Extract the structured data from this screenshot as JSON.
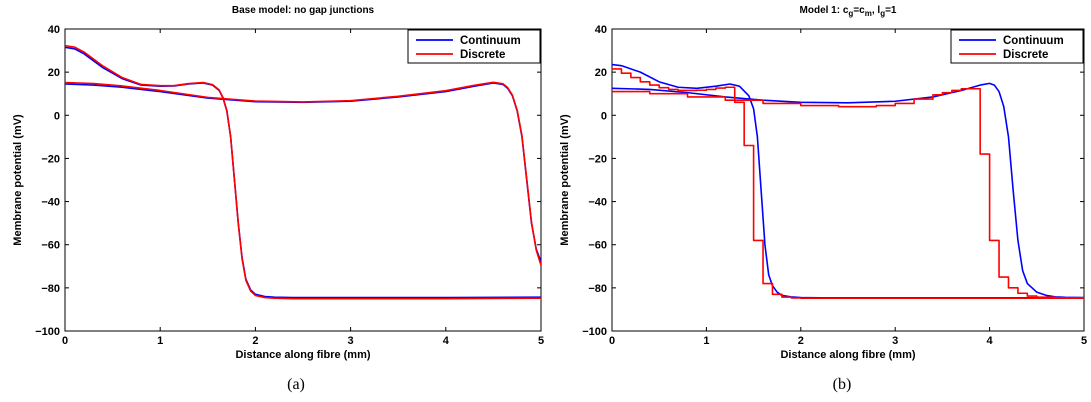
{
  "chart_data": [
    {
      "type": "line",
      "title": "Base model: no gap junctions",
      "title_sub": "",
      "caption": "(a)",
      "xlabel": "Distance along fibre (mm)",
      "ylabel": "Membrane potential (mV)",
      "xlim": [
        0,
        5
      ],
      "ylim": [
        -100,
        40
      ],
      "xticks": [
        "0",
        "1",
        "2",
        "3",
        "4",
        "5"
      ],
      "yticks": [
        "40",
        "20",
        "0",
        "−20",
        "−40",
        "−60",
        "−80",
        "−100"
      ],
      "legend_position": "top-right",
      "series": [
        {
          "name": "Continuum",
          "color": "#0000ff",
          "stepped": false,
          "curves": [
            {
              "x": [
                0,
                0.1,
                0.2,
                0.4,
                0.6,
                0.8,
                1.0,
                1.15,
                1.3,
                1.45,
                1.55,
                1.62,
                1.66,
                1.7,
                1.74,
                1.78,
                1.82,
                1.86,
                1.9,
                1.95,
                2.0,
                2.1,
                2.2,
                2.4,
                3.0,
                4.0,
                5.0
              ],
              "y": [
                31.5,
                30.8,
                28.5,
                22,
                17,
                14,
                13.5,
                13.6,
                14.5,
                15,
                14,
                11.5,
                8,
                2,
                -10,
                -30,
                -50,
                -66,
                -76,
                -81,
                -83,
                -84,
                -84.3,
                -84.5,
                -84.5,
                -84.5,
                -84.3
              ]
            },
            {
              "x": [
                0,
                0.3,
                0.6,
                1.0,
                1.5,
                2.0,
                2.5,
                3.0,
                3.5,
                4.0,
                4.3,
                4.5,
                4.6,
                4.65,
                4.7,
                4.75,
                4.8,
                4.85,
                4.9,
                4.95,
                5.0
              ],
              "y": [
                14.5,
                14,
                13,
                11,
                8,
                6.3,
                6,
                6.5,
                8.5,
                11,
                13.5,
                15,
                14.3,
                12.5,
                9,
                2,
                -10,
                -30,
                -50,
                -62,
                -68
              ]
            }
          ]
        },
        {
          "name": "Discrete",
          "color": "#ff0000",
          "stepped": false,
          "curves": [
            {
              "x": [
                0,
                0.1,
                0.2,
                0.4,
                0.6,
                0.8,
                1.0,
                1.15,
                1.3,
                1.45,
                1.55,
                1.62,
                1.66,
                1.7,
                1.74,
                1.78,
                1.82,
                1.86,
                1.9,
                1.95,
                2.0,
                2.1,
                2.2,
                2.4,
                3.0,
                4.0,
                5.0
              ],
              "y": [
                32.3,
                31.6,
                29.3,
                22.8,
                17.5,
                14.3,
                13.7,
                13.8,
                14.7,
                15.2,
                14.2,
                11.7,
                8.2,
                2.2,
                -10,
                -30,
                -50,
                -66.5,
                -76.5,
                -81.5,
                -83.5,
                -84.5,
                -84.8,
                -85,
                -85,
                -85,
                -84.8
              ]
            },
            {
              "x": [
                0,
                0.3,
                0.6,
                1.0,
                1.5,
                2.0,
                2.5,
                3.0,
                3.5,
                4.0,
                4.3,
                4.5,
                4.6,
                4.65,
                4.7,
                4.75,
                4.8,
                4.85,
                4.9,
                4.95,
                5.0
              ],
              "y": [
                15.2,
                14.7,
                13.6,
                11.5,
                8.3,
                6.6,
                6.2,
                6.8,
                8.8,
                11.4,
                13.9,
                15.3,
                14.6,
                12.8,
                9.3,
                2.3,
                -9.5,
                -29.5,
                -49.5,
                -62.5,
                -69.5
              ]
            }
          ]
        }
      ]
    },
    {
      "type": "line",
      "title": "Model 1: c",
      "title_sub": "g",
      "title_mid": "=c",
      "title_sub2": "m",
      "title_mid2": ", l",
      "title_sub3": "g",
      "title_end": "=1",
      "caption": "(b)",
      "xlabel": "Distance along fibre (mm)",
      "ylabel": "Membrane potential (mV)",
      "xlim": [
        0,
        5
      ],
      "ylim": [
        -100,
        40
      ],
      "xticks": [
        "0",
        "1",
        "2",
        "3",
        "4",
        "5"
      ],
      "yticks": [
        "40",
        "20",
        "0",
        "−20",
        "−40",
        "−60",
        "−80",
        "−100"
      ],
      "legend_position": "top-right",
      "series": [
        {
          "name": "Continuum",
          "color": "#0000ff",
          "stepped": false,
          "curves": [
            {
              "x": [
                0,
                0.1,
                0.3,
                0.5,
                0.7,
                0.9,
                1.1,
                1.25,
                1.35,
                1.45,
                1.5,
                1.54,
                1.58,
                1.62,
                1.66,
                1.7,
                1.75,
                1.8,
                1.9,
                2.0,
                2.2,
                3.0,
                4.0,
                5.0
              ],
              "y": [
                23.5,
                23,
                20,
                15.5,
                13,
                12.5,
                13.5,
                14.5,
                13.5,
                9,
                3,
                -10,
                -35,
                -60,
                -74,
                -79,
                -82,
                -83.5,
                -84.2,
                -84.5,
                -84.6,
                -84.6,
                -84.6,
                -84.6
              ]
            },
            {
              "x": [
                0,
                0.4,
                0.8,
                1.2,
                1.6,
                2.0,
                2.5,
                3.0,
                3.4,
                3.7,
                3.9,
                4.0,
                4.05,
                4.1,
                4.15,
                4.2,
                4.25,
                4.3,
                4.35,
                4.4,
                4.5,
                4.6,
                4.7,
                4.8,
                5.0
              ],
              "y": [
                12.5,
                12,
                10.5,
                8.5,
                7,
                6,
                5.8,
                6.5,
                8.5,
                11.5,
                14,
                14.8,
                14,
                11,
                4,
                -10,
                -35,
                -58,
                -72,
                -78,
                -82,
                -83.5,
                -84.2,
                -84.4,
                -84.5
              ]
            }
          ]
        },
        {
          "name": "Discrete",
          "color": "#ff0000",
          "stepped": true,
          "curves": [
            {
              "x": [
                0,
                0.1,
                0.2,
                0.3,
                0.4,
                0.5,
                0.6,
                0.7,
                0.8,
                0.9,
                1.0,
                1.1,
                1.2,
                1.3,
                1.4,
                1.5,
                1.6,
                1.7,
                1.8,
                1.9,
                2.0,
                2.5,
                3.0,
                4.0,
                5.0
              ],
              "y": [
                21.5,
                19.5,
                17.5,
                15.5,
                14,
                12.8,
                12,
                11.5,
                11.5,
                11.6,
                12,
                12.6,
                13,
                6,
                -14,
                -58,
                -78,
                -83,
                -84.3,
                -84.7,
                -84.8,
                -84.8,
                -84.8,
                -84.8,
                -84.8
              ]
            },
            {
              "x": [
                0,
                0.4,
                0.8,
                1.2,
                1.6,
                2.0,
                2.4,
                2.8,
                3.0,
                3.2,
                3.4,
                3.5,
                3.6,
                3.7,
                3.8,
                3.9,
                4.0,
                4.1,
                4.2,
                4.3,
                4.4,
                4.5,
                4.7,
                5.0
              ],
              "y": [
                11,
                10,
                8.5,
                7,
                5.5,
                4.5,
                4,
                4.5,
                5.5,
                7.5,
                9.5,
                10.5,
                11.5,
                12.3,
                12.3,
                -18,
                -58,
                -75,
                -80,
                -82.5,
                -83.8,
                -84.3,
                -84.6,
                -84.7
              ]
            }
          ]
        }
      ]
    }
  ]
}
